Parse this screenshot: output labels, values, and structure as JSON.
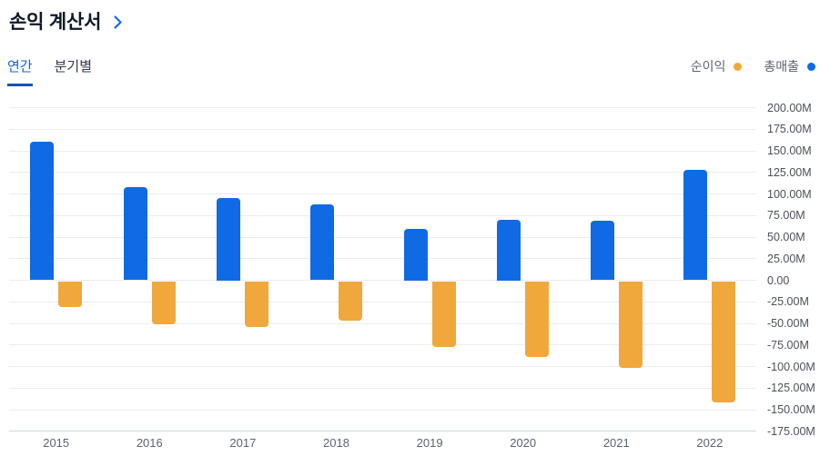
{
  "header": {
    "title": "손익 계산서"
  },
  "tabs": {
    "annual": "연간",
    "quarterly": "분기별"
  },
  "legend": {
    "net_income": {
      "label": "순이익",
      "color": "#F0A73C"
    },
    "revenue": {
      "label": "총매출",
      "color": "#0F6AE4"
    }
  },
  "chart_data": {
    "type": "bar",
    "title": "손익 계산서",
    "unit": "M",
    "categories": [
      "2015",
      "2016",
      "2017",
      "2018",
      "2019",
      "2020",
      "2021",
      "2022"
    ],
    "series": [
      {
        "name": "총매출",
        "color": "#0F6AE4",
        "values": [
          161,
          108,
          95,
          88,
          60,
          70,
          69,
          128
        ]
      },
      {
        "name": "순이익",
        "color": "#F0A73C",
        "values": [
          -30,
          -50,
          -53,
          -46,
          -76,
          -88,
          -100,
          -141
        ]
      }
    ],
    "y_axis": {
      "position": "right",
      "tick_labels": [
        "200.00M",
        "175.00M",
        "150.00M",
        "125.00M",
        "100.00M",
        "75.00M",
        "50.00M",
        "25.00M",
        "0.00",
        "-25.00M",
        "-50.00M",
        "-75.00M",
        "-100.00M",
        "-125.00M",
        "-150.00M",
        "-175.00M"
      ],
      "tick_values": [
        200,
        175,
        150,
        125,
        100,
        75,
        50,
        25,
        0,
        -25,
        -50,
        -75,
        -100,
        -125,
        -150,
        -175
      ]
    },
    "ylim": [
      -175,
      200
    ],
    "grid": true,
    "legend_position": "top-right"
  }
}
